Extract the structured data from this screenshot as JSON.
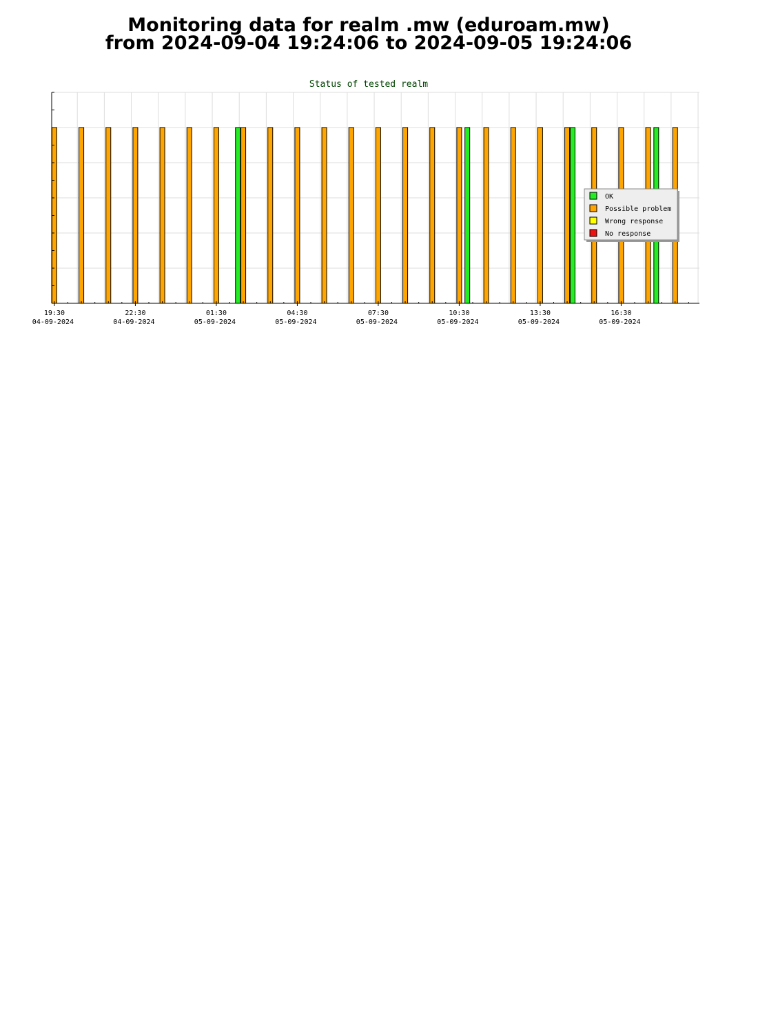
{
  "page": {
    "title_line1": "Monitoring data for realm .mw  (eduroam.mw)",
    "title_line2": "from 2024-09-04 19:24:06 to 2024-09-05 19:24:06"
  },
  "chart_data": {
    "type": "bar",
    "title": "Status of tested realm",
    "xlabel": "",
    "ylabel": "",
    "x_unit": "hours since 2024-09-04 19:24:06",
    "xlim": [
      0,
      24
    ],
    "ylim": [
      0,
      1.2
    ],
    "grid": true,
    "legend_position": "right",
    "x_ticks": [
      {
        "time": "19:30",
        "date": "04-09-2024",
        "hour": 0.1
      },
      {
        "time": "22:30",
        "date": "04-09-2024",
        "hour": 3.1
      },
      {
        "time": "01:30",
        "date": "05-09-2024",
        "hour": 6.1
      },
      {
        "time": "04:30",
        "date": "05-09-2024",
        "hour": 9.1
      },
      {
        "time": "07:30",
        "date": "05-09-2024",
        "hour": 12.1
      },
      {
        "time": "10:30",
        "date": "05-09-2024",
        "hour": 15.1
      },
      {
        "time": "13:30",
        "date": "05-09-2024",
        "hour": 18.1
      },
      {
        "time": "16:30",
        "date": "05-09-2024",
        "hour": 21.1
      }
    ],
    "series": [
      {
        "name": "OK",
        "color": "#22ee22",
        "x": [
          6.9,
          15.4,
          19.3,
          22.4
        ],
        "values": [
          1,
          1,
          1,
          1
        ]
      },
      {
        "name": "Possible problem",
        "color": "#ffa500",
        "x": [
          0.1,
          1.1,
          2.1,
          3.1,
          4.1,
          5.1,
          6.1,
          7.1,
          8.1,
          9.1,
          10.1,
          11.1,
          12.1,
          13.1,
          14.1,
          15.1,
          16.1,
          17.1,
          18.1,
          19.1,
          20.1,
          21.1,
          22.1,
          23.1
        ],
        "values": [
          1,
          1,
          1,
          1,
          1,
          1,
          1,
          1,
          1,
          1,
          1,
          1,
          1,
          1,
          1,
          1,
          1,
          1,
          1,
          1,
          1,
          1,
          1,
          1
        ]
      },
      {
        "name": "Wrong response",
        "color": "#ffff00",
        "x": [],
        "values": []
      },
      {
        "name": "No response",
        "color": "#ee1111",
        "x": [],
        "values": []
      }
    ]
  }
}
